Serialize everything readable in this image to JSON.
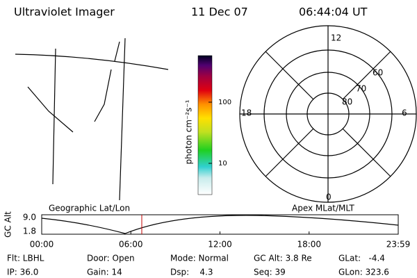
{
  "header": {
    "title": "Ultraviolet Imager",
    "date": "11 Dec 07",
    "time": "06:44:04 UT"
  },
  "colorbar": {
    "label": "photon cm⁻²s⁻¹",
    "ticks": [
      "100",
      "10"
    ]
  },
  "polar": {
    "mlt_labels": [
      "12",
      "6",
      "0",
      "18"
    ],
    "lat_labels": [
      "60",
      "70",
      "80"
    ]
  },
  "panel_labels": {
    "left": "Geographic Lat/Lon",
    "right": "Apex MLat/MLT"
  },
  "altitude_plot": {
    "y_label": "GC Alt",
    "y_ticks": [
      "9.0",
      "1.8"
    ],
    "x_ticks": [
      "00:00",
      "06:00",
      "12:00",
      "18:00",
      "23:59"
    ]
  },
  "info": [
    [
      "Flt: LBHL",
      "Door: Open",
      "Mode: Normal",
      "GC Alt: 3.8 Re",
      "GLat:   -4.4"
    ],
    [
      "IP: 36.0",
      "Gain: 14",
      "Dsp:    4.3",
      "Seq: 39",
      "GLon: 323.6"
    ]
  ]
}
